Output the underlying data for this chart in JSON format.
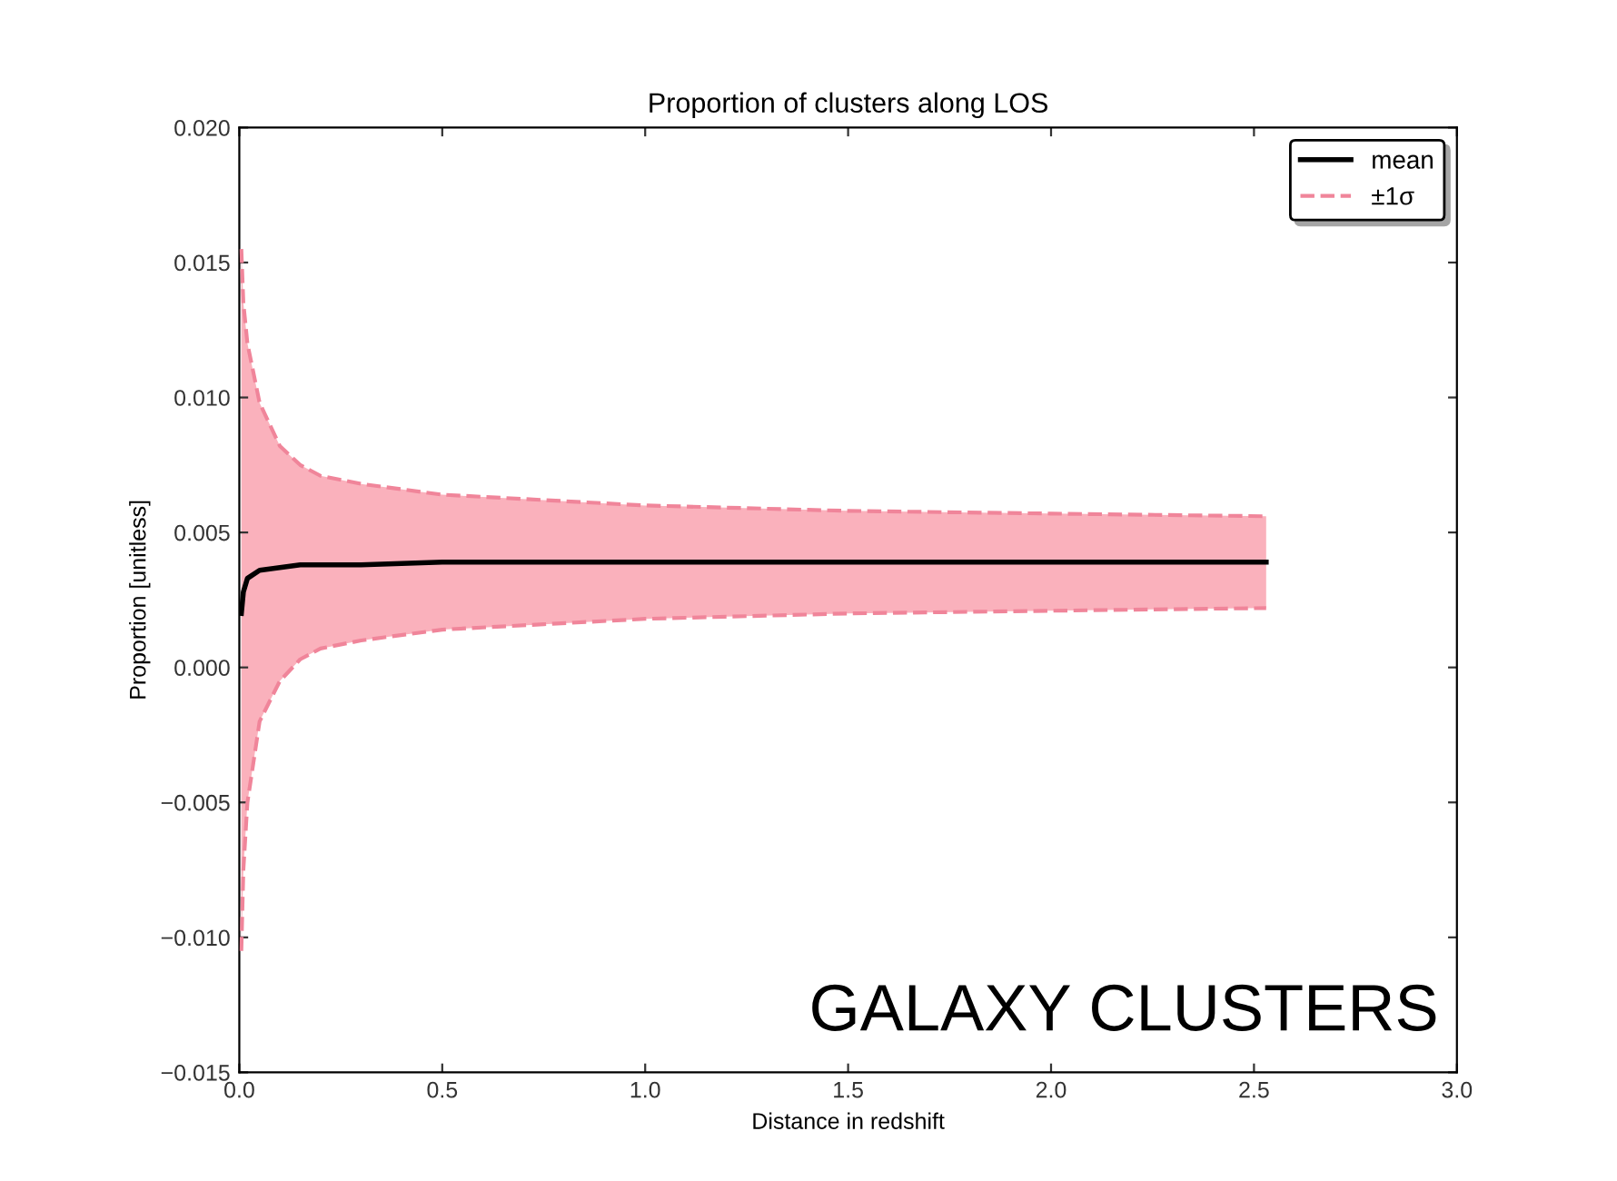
{
  "chart_data": {
    "type": "line",
    "title": "Proportion of clusters along LOS",
    "xlabel": "Distance in redshift",
    "ylabel": "Proportion [unitless]",
    "x": [
      0.005,
      0.01,
      0.02,
      0.05,
      0.1,
      0.15,
      0.2,
      0.3,
      0.5,
      0.75,
      1.0,
      1.5,
      2.0,
      2.53
    ],
    "series": [
      {
        "name": "mean",
        "color": "#000000",
        "line_style": "solid",
        "values": [
          0.002,
          0.0028,
          0.0033,
          0.0036,
          0.0037,
          0.0038,
          0.0038,
          0.0038,
          0.0039,
          0.0039,
          0.0039,
          0.0039,
          0.0039,
          0.0039
        ],
        "lower": [
          -0.0105,
          -0.0075,
          -0.005,
          -0.002,
          -0.0005,
          0.0003,
          0.0007,
          0.001,
          0.0014,
          0.0016,
          0.0018,
          0.002,
          0.0021,
          0.0022
        ],
        "upper": [
          0.0155,
          0.0135,
          0.012,
          0.0098,
          0.0082,
          0.0075,
          0.0071,
          0.0068,
          0.0064,
          0.0062,
          0.006,
          0.0058,
          0.0057,
          0.0056
        ]
      },
      {
        "name": "±1σ",
        "color": "#f0859a",
        "line_style": "dashed",
        "values": [
          0.0155,
          0.0135,
          0.012,
          0.0098,
          0.0082,
          0.0075,
          0.0071,
          0.0068,
          0.0064,
          0.0062,
          0.006,
          0.0058,
          0.0057,
          0.0056
        ]
      },
      {
        "color": "#f0859a",
        "line_style": "dashed",
        "values": [
          -0.0105,
          -0.0075,
          -0.005,
          -0.002,
          -0.0005,
          0.0003,
          0.0007,
          0.001,
          0.0014,
          0.0016,
          0.0018,
          0.002,
          0.0021,
          0.0022
        ]
      }
    ],
    "xlim": [
      0.0,
      3.0
    ],
    "xticks": [
      {
        "value": 0,
        "label": "0.0"
      },
      0.5,
      {
        "value": 1,
        "label": "1.0"
      },
      1.5,
      {
        "value": 2,
        "label": "2.0"
      },
      2.5,
      {
        "value": 3,
        "label": "3.0"
      }
    ],
    "ylim": [
      -0.015,
      0.02
    ],
    "yticks": [
      {
        "value": -0.015,
        "label": "−0.015"
      },
      {
        "value": -0.01,
        "label": "−0.010"
      },
      {
        "value": -0.005,
        "label": "−0.005"
      },
      {
        "value": 0,
        "label": "0.000"
      },
      0.005,
      {
        "value": 0.01,
        "label": "0.010"
      },
      0.015,
      {
        "value": 0.02,
        "label": "0.020"
      }
    ],
    "grid": false,
    "legend": "top right",
    "marker": "none",
    "annotations": [
      "GALAXY CLUSTERS"
    ]
  }
}
